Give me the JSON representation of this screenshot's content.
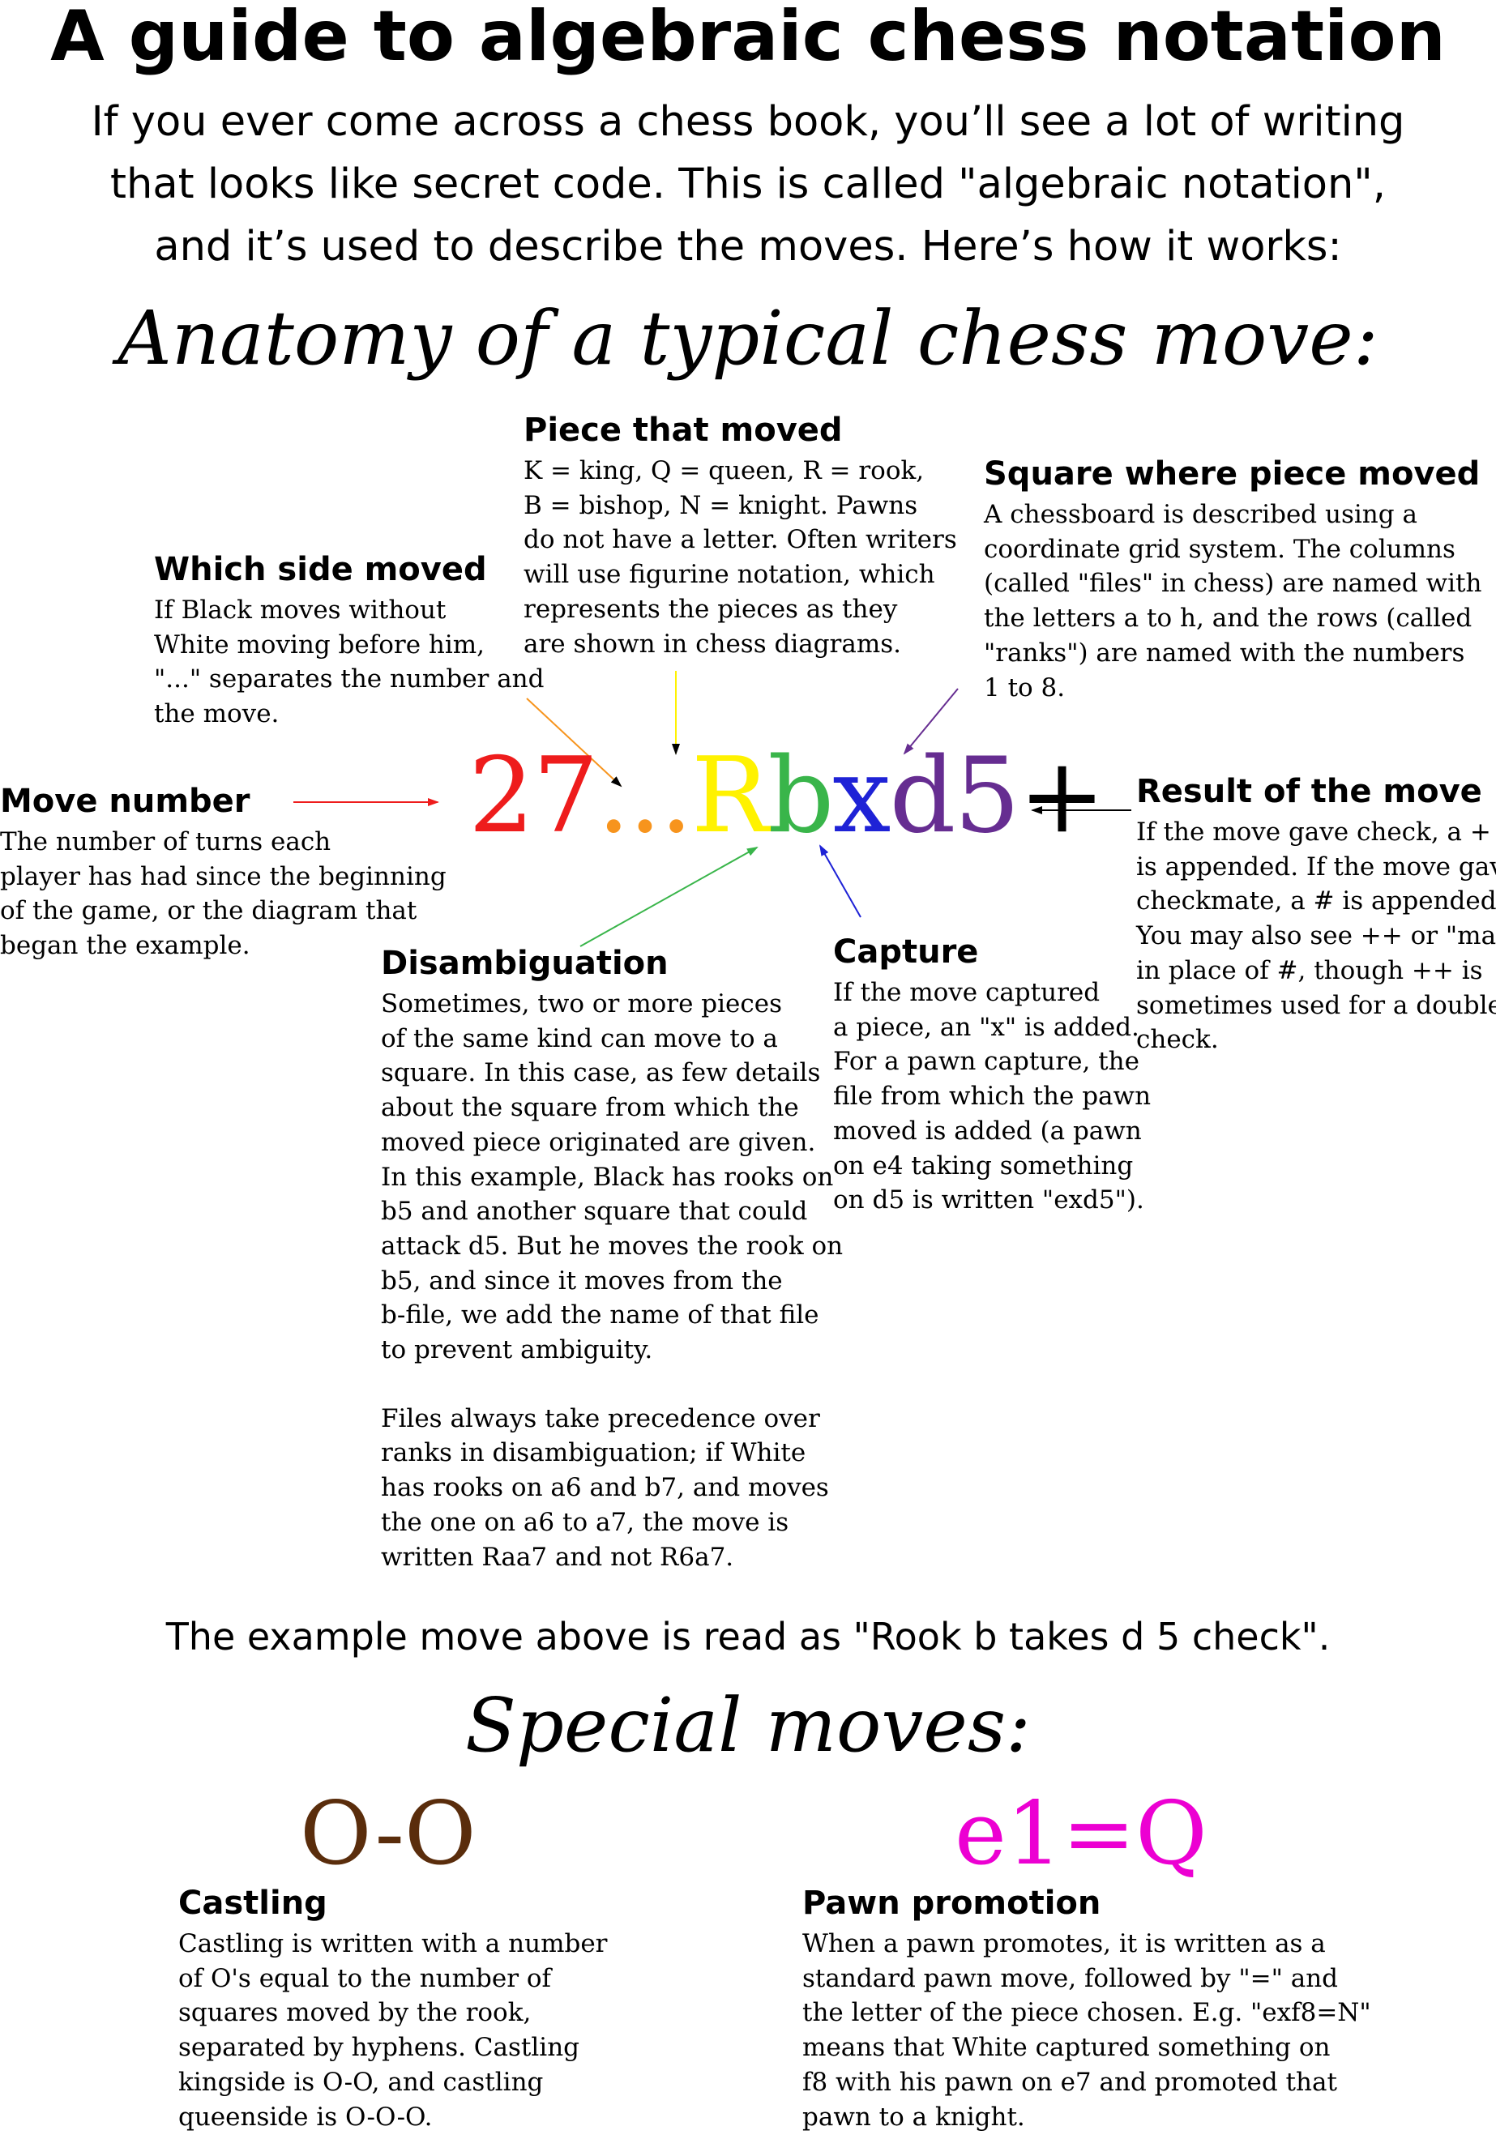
{
  "title": "A guide to algebraic chess notation",
  "intro_lines": [
    "If you ever come across a chess book, you’ll see a lot of writing",
    "that looks like secret code. This is called \"algebraic notation\",",
    "and it’s used to describe the moves. Here’s how it works:"
  ],
  "anatomy_heading": "Anatomy of a typical chess move:",
  "move_parts": {
    "number": "27",
    "ellipsis": "...",
    "piece": "R",
    "file": "b",
    "capture": "x",
    "square_file": "d",
    "square_rank": "5",
    "check": "+"
  },
  "colors": {
    "number": "#ee1c1c",
    "ellipsis": "#f7941d",
    "piece": "#fff200",
    "file": "#39b54a",
    "capture": "#1e22d6",
    "square_file": "#662d91",
    "square_rank": "#662d91",
    "check": "#000000",
    "castling": "#5a2d0c",
    "promotion": "#ec00d2"
  },
  "labels": {
    "piece_moved": {
      "heading": "Piece that moved",
      "lines": [
        "K = king, Q = queen, R = rook,",
        "B = bishop, N = knight. Pawns",
        "do not have a letter. Often writers",
        "will use figurine notation, which",
        "represents the pieces as they",
        "are shown in chess diagrams."
      ]
    },
    "square_moved": {
      "heading": "Square where piece moved",
      "lines": [
        "A  chessboard is described using a",
        "coordinate grid system. The columns",
        "(called \"files\" in chess) are named with",
        "the letters a to h, and the rows (called",
        "\"ranks\") are named with the numbers",
        "1 to 8."
      ]
    },
    "side_moved": {
      "heading": "Which side moved",
      "lines": [
        "If Black moves without",
        "White moving before him,",
        "\"...\" separates the number and",
        "the move."
      ]
    },
    "move_number": {
      "heading": "Move number",
      "lines": [
        "The number of turns each",
        "player has had since the beginning",
        "of the game, or the diagram that",
        "began the example."
      ]
    },
    "result": {
      "heading": "Result of the move",
      "lines": [
        "If the move gave check, a +",
        "is appended. If the move gave",
        "checkmate, a # is appended.",
        "You may also see ++ or \"mate\"",
        "in place of #, though ++ is",
        "sometimes used for a double",
        "check."
      ]
    },
    "capture": {
      "heading": "Capture",
      "lines": [
        "If the move captured",
        "a piece, an \"x\" is added.",
        "For a pawn capture, the",
        "file from which the pawn",
        "moved is added (a pawn",
        "on e4 taking something",
        "on d5 is written \"exd5\")."
      ]
    },
    "disambiguation": {
      "heading": "Disambiguation",
      "lines": [
        "Sometimes, two or more pieces",
        "of the same kind can move to a",
        "square. In this case, as few details",
        "about the square from which the",
        "moved piece originated are given.",
        "In this example, Black has rooks on",
        "b5 and another square that could",
        "attack d5. But he moves the rook on",
        "b5, and since it moves from the",
        "b-file, we add the name of that file",
        "to prevent ambiguity."
      ],
      "lines2": [
        "Files always take precedence over",
        "ranks in disambiguation; if White",
        "has rooks on a6 and b7, and moves",
        "the one on a6 to a7, the move is",
        "written Raa7 and not R6a7."
      ]
    }
  },
  "read_as": "The example move above is read as \"Rook b takes d 5 check\".",
  "special_heading": "Special moves:",
  "special": {
    "castling": {
      "notation": "O-O",
      "heading": "Castling",
      "lines": [
        "Castling is written with a number",
        "of O's equal to the number of",
        "squares moved by the rook,",
        "separated by hyphens. Castling",
        "kingside is O-O, and castling",
        "queenside is O-O-O."
      ]
    },
    "promotion": {
      "notation": "e1=Q",
      "heading": "Pawn promotion",
      "lines": [
        "When a pawn promotes, it is written as a",
        "standard pawn move, followed by \"=\" and",
        "the letter of the piece chosen. E.g. \"exf8=N\"",
        "means that White captured something on",
        "f8 with his pawn on e7 and promoted that",
        "pawn to a knight."
      ]
    }
  }
}
